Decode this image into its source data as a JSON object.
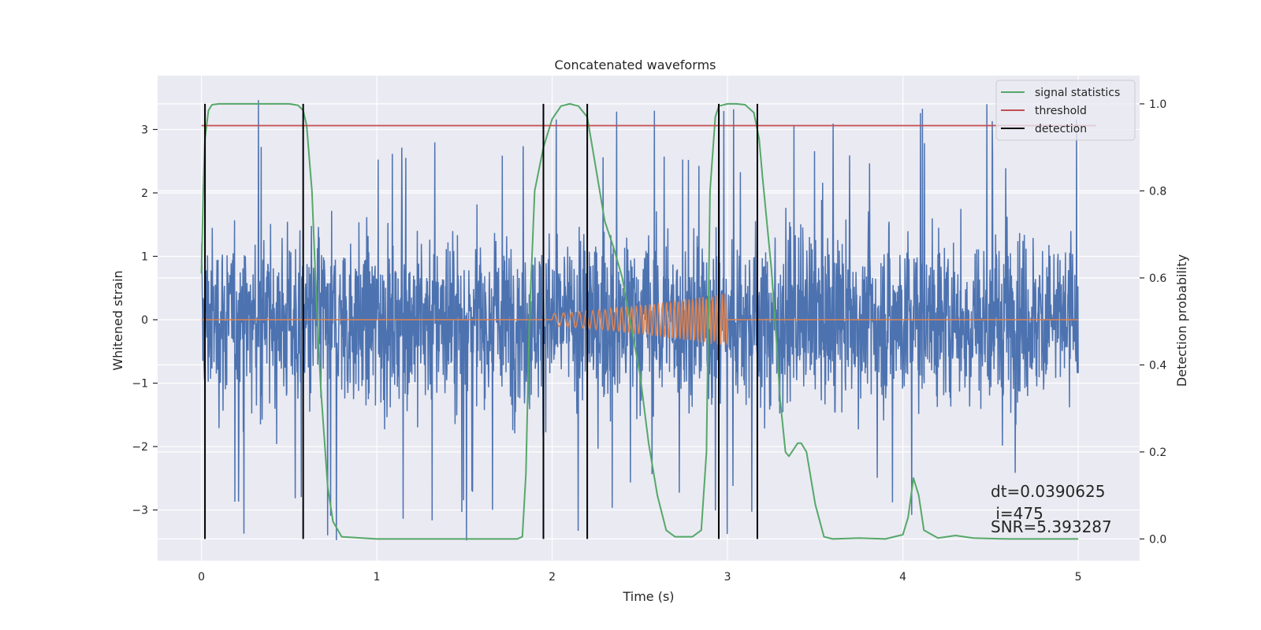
{
  "chart_data": {
    "type": "line",
    "title": "Concatenated waveforms",
    "xlabel": "Time (s)",
    "ylabel": "Whitened strain",
    "ylabel_right": "Detection probability",
    "xlim": [
      -0.25,
      5.35
    ],
    "ylim": [
      -3.8,
      3.85
    ],
    "ylim_right": [
      -0.05,
      1.065
    ],
    "xticks": [
      0,
      1,
      2,
      3,
      4,
      5
    ],
    "xtick_labels": [
      "0",
      "1",
      "2",
      "3",
      "4",
      "5"
    ],
    "yticks": [
      -3,
      -2,
      -1,
      0,
      1,
      2,
      3
    ],
    "ytick_labels": [
      "−3",
      "−2",
      "−1",
      "0",
      "1",
      "2",
      "3"
    ],
    "yticks_right": [
      0.0,
      0.2,
      0.4,
      0.6,
      0.8,
      1.0
    ],
    "ytick_labels_right": [
      "0.0",
      "0.2",
      "0.4",
      "0.6",
      "0.8",
      "1.0"
    ],
    "grid": true,
    "legend_position": "upper right",
    "series": [
      {
        "kind": "noise",
        "axis": "left",
        "color": "#4c72b0",
        "x_range": [
          0,
          5
        ],
        "typical_amplitude": 1.6,
        "peak_amplitude": 3.5
      },
      {
        "kind": "chirp",
        "axis": "left",
        "color": "#dd8452",
        "x_range": [
          0,
          5
        ],
        "chirp_start": 2.0,
        "chirp_end": 3.0,
        "amp_start": 0.1,
        "amp_end": 0.42
      },
      {
        "name": "signal statistics",
        "axis": "right",
        "color": "#55a868",
        "x": [
          0,
          0.01,
          0.02,
          0.04,
          0.06,
          0.1,
          0.2,
          0.3,
          0.4,
          0.5,
          0.55,
          0.58,
          0.6,
          0.63,
          0.65,
          0.68,
          0.72,
          0.75,
          0.8,
          1.0,
          1.5,
          1.8,
          1.83,
          1.85,
          1.87,
          1.9,
          1.95,
          2.0,
          2.05,
          2.1,
          2.15,
          2.2,
          2.25,
          2.3,
          2.35,
          2.4,
          2.5,
          2.55,
          2.6,
          2.65,
          2.7,
          2.8,
          2.85,
          2.88,
          2.9,
          2.93,
          2.95,
          3.0,
          3.05,
          3.1,
          3.15,
          3.18,
          3.2,
          3.25,
          3.28,
          3.3,
          3.33,
          3.35,
          3.4,
          3.42,
          3.45,
          3.5,
          3.55,
          3.6,
          3.75,
          3.9,
          4.0,
          4.03,
          4.06,
          4.09,
          4.12,
          4.2,
          4.3,
          4.4,
          4.6,
          5.0
        ],
        "values": [
          0.61,
          0.8,
          0.92,
          0.985,
          0.998,
          1.0,
          1.0,
          1.0,
          1.0,
          1.0,
          0.997,
          0.985,
          0.95,
          0.8,
          0.6,
          0.35,
          0.12,
          0.04,
          0.005,
          0.0,
          0.0,
          0.0,
          0.005,
          0.15,
          0.5,
          0.8,
          0.9,
          0.965,
          0.995,
          1.0,
          0.995,
          0.97,
          0.85,
          0.73,
          0.67,
          0.6,
          0.38,
          0.22,
          0.1,
          0.02,
          0.005,
          0.005,
          0.02,
          0.2,
          0.8,
          0.97,
          0.995,
          1.0,
          1.0,
          0.998,
          0.98,
          0.92,
          0.83,
          0.62,
          0.45,
          0.32,
          0.2,
          0.19,
          0.22,
          0.22,
          0.2,
          0.08,
          0.005,
          0.0,
          0.002,
          0.0,
          0.01,
          0.05,
          0.14,
          0.1,
          0.02,
          0.002,
          0.008,
          0.002,
          0.0,
          0.0
        ]
      },
      {
        "name": "threshold",
        "axis": "right",
        "color": "#c44e52",
        "x": [
          0,
          5.1
        ],
        "values": [
          0.95,
          0.95
        ]
      },
      {
        "name": "detection",
        "axis": "right",
        "color": "#000000",
        "type": "vlines",
        "x": [
          0.02,
          0.58,
          1.95,
          2.2,
          2.95,
          3.17
        ],
        "ymin": 0.0,
        "ymax": 1.0
      }
    ],
    "annotations": [
      "dt=0.0390625",
      " i=475",
      "SNR=5.393287"
    ]
  }
}
